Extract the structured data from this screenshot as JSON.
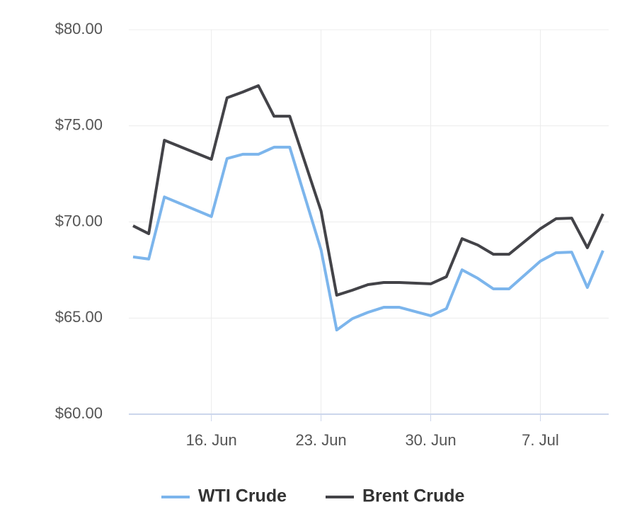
{
  "chart_data": {
    "type": "line",
    "x": [
      "06-11",
      "06-12",
      "06-13",
      "06-16",
      "06-17",
      "06-18",
      "06-19",
      "06-20",
      "06-21",
      "06-23",
      "06-24",
      "06-25",
      "06-26",
      "06-27",
      "06-28",
      "06-30",
      "07-01",
      "07-02",
      "07-03",
      "07-04",
      "07-05",
      "07-07",
      "07-08",
      "07-09",
      "07-10",
      "07-11"
    ],
    "series": [
      {
        "name": "WTI Crude",
        "color": "#7cb5ec",
        "values": [
          68.18,
          68.07,
          71.3,
          70.28,
          73.3,
          73.52,
          73.52,
          73.89,
          73.89,
          68.55,
          64.38,
          64.97,
          65.3,
          65.56,
          65.56,
          65.12,
          65.49,
          67.51,
          67.07,
          66.52,
          66.52,
          67.96,
          68.4,
          68.43,
          66.59,
          68.51
        ]
      },
      {
        "name": "Brent Crude",
        "color": "#434348",
        "values": [
          69.8,
          69.39,
          74.25,
          73.26,
          76.46,
          76.76,
          77.09,
          75.5,
          75.5,
          70.57,
          66.19,
          66.45,
          66.74,
          66.85,
          66.85,
          66.78,
          67.15,
          69.13,
          68.8,
          68.32,
          68.32,
          69.65,
          70.17,
          70.2,
          68.66,
          70.42
        ]
      }
    ],
    "xlim": [
      "06-11",
      "07-11"
    ],
    "xticks": [
      {
        "value": "06-16",
        "label": "16. Jun"
      },
      {
        "value": "06-23",
        "label": "23. Jun"
      },
      {
        "value": "06-30",
        "label": "30. Jun"
      },
      {
        "value": "07-07",
        "label": "7. Jul"
      }
    ],
    "ylim": [
      60,
      80
    ],
    "yticks": [
      {
        "value": 60,
        "label": "$60.00"
      },
      {
        "value": 65,
        "label": "$65.00"
      },
      {
        "value": 70,
        "label": "$70.00"
      },
      {
        "value": 75,
        "label": "$75.00"
      },
      {
        "value": 80,
        "label": "$80.00"
      }
    ],
    "grid": true,
    "legend": "bottom"
  }
}
